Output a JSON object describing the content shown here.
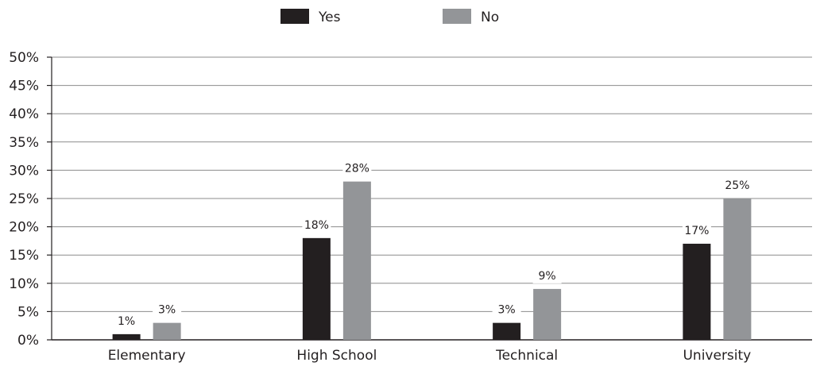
{
  "chart_data": {
    "type": "bar",
    "categories": [
      "Elementary",
      "High School",
      "Technical",
      "University"
    ],
    "series": [
      {
        "name": "Yes",
        "values": [
          1,
          18,
          3,
          17
        ],
        "color": "#231f20"
      },
      {
        "name": "No",
        "values": [
          3,
          28,
          9,
          25
        ],
        "color": "#939598"
      }
    ],
    "data_labels": [
      [
        "1%",
        "18%",
        "3%",
        "17%"
      ],
      [
        "3%",
        "28%",
        "9%",
        "25%"
      ]
    ],
    "yticks": [
      "0%",
      "5%",
      "10%",
      "15%",
      "20%",
      "25%",
      "30%",
      "35%",
      "40%",
      "45%",
      "50%"
    ],
    "ylim": [
      0,
      50
    ],
    "ystep": 5,
    "title": "",
    "xlabel": "",
    "ylabel": "",
    "grid": true,
    "legend_position": "top-center"
  }
}
